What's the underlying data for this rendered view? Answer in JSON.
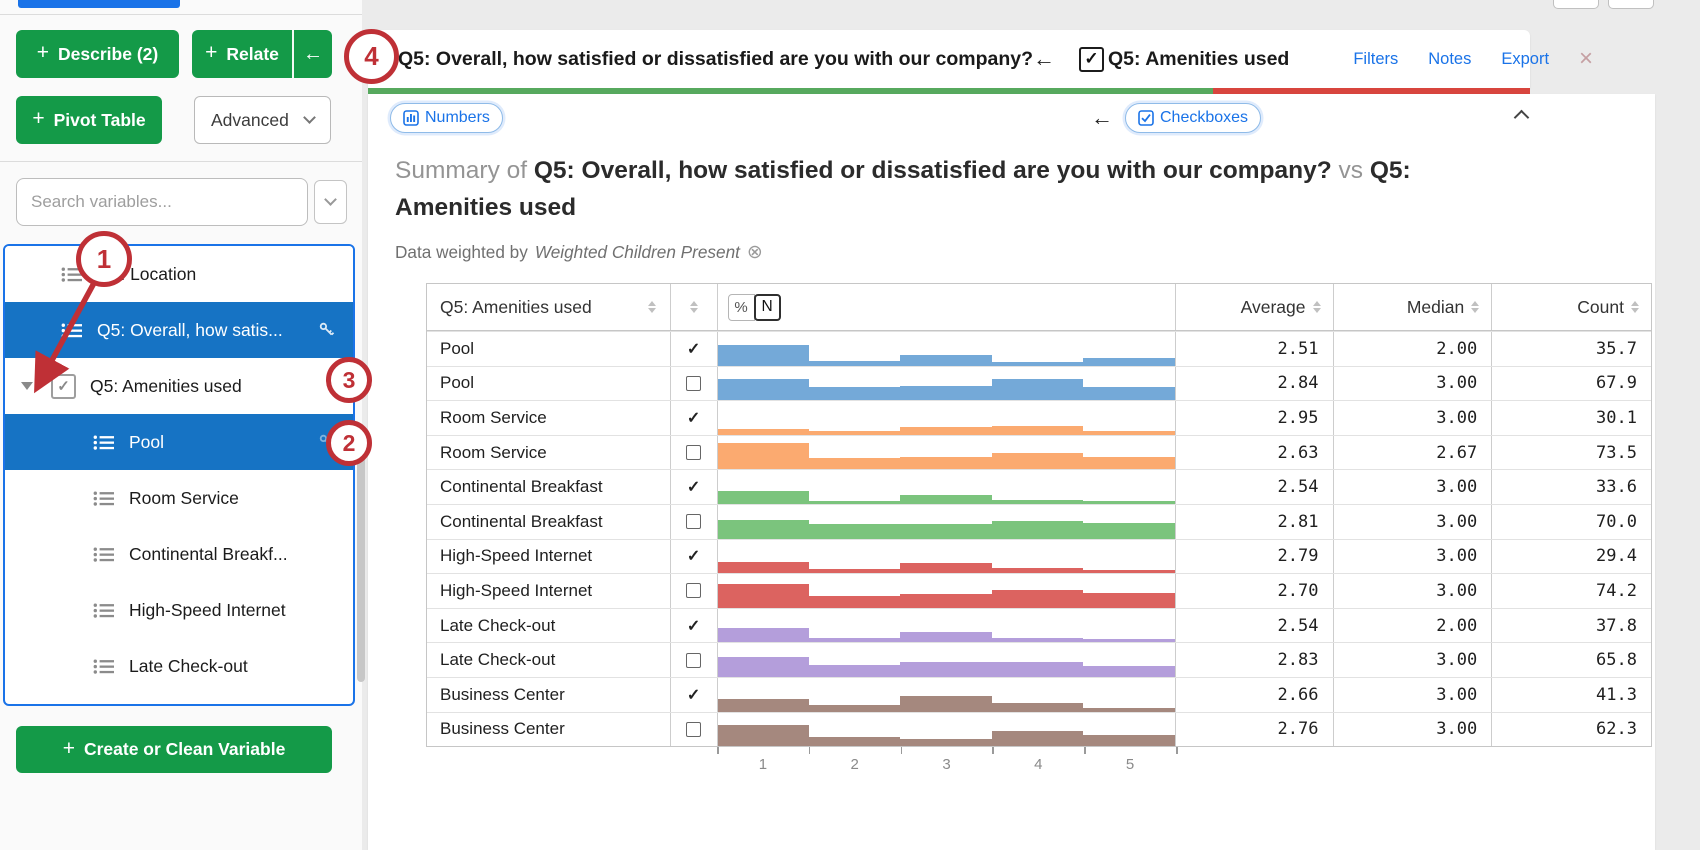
{
  "icons": {
    "plus": "+",
    "back_arrow": "←",
    "close": "×",
    "weight_remove": "⊗",
    "check": "✓",
    "percent": "%",
    "n": "N"
  },
  "sidebar": {
    "buttons": {
      "describe": "Describe (2)",
      "relate": "Relate",
      "pivot": "Pivot Table",
      "advanced": "Advanced",
      "create": "Create or Clean Variable"
    },
    "search_placeholder": "Search variables...",
    "items": [
      {
        "label": "Q3: Location",
        "type": "categorical",
        "level": 0,
        "selected": false,
        "key": false,
        "checkbox": false,
        "expander": false
      },
      {
        "label": "Q5: Overall, how satis...",
        "type": "categorical",
        "level": 0,
        "selected": true,
        "key": true,
        "checkbox": false,
        "expander": false
      },
      {
        "label": "Q5: Amenities used",
        "type": "multi",
        "level": 0,
        "selected": false,
        "key": false,
        "checkbox": true,
        "expander": true
      },
      {
        "label": "Pool",
        "type": "categorical",
        "level": 1,
        "selected": true,
        "key": true,
        "checkbox": false,
        "expander": false
      },
      {
        "label": "Room Service",
        "type": "categorical",
        "level": 1,
        "selected": false,
        "key": false,
        "checkbox": false,
        "expander": false
      },
      {
        "label": "Continental Breakf...",
        "type": "categorical",
        "level": 1,
        "selected": false,
        "key": false,
        "checkbox": false,
        "expander": false
      },
      {
        "label": "High-Speed Internet",
        "type": "categorical",
        "level": 1,
        "selected": false,
        "key": false,
        "checkbox": false,
        "expander": false
      },
      {
        "label": "Late Check-out",
        "type": "categorical",
        "level": 1,
        "selected": false,
        "key": false,
        "checkbox": false,
        "expander": false
      }
    ]
  },
  "header": {
    "primary_title": "Q5: Overall, how satisfied or dissatisfied are you with our company?",
    "secondary_title": "Q5: Amenities used",
    "links": {
      "filters": "Filters",
      "notes": "Notes",
      "export": "Export"
    }
  },
  "tabs": {
    "numbers": "Numbers",
    "checkboxes": "Checkboxes"
  },
  "summary": {
    "prefix": "Summary of",
    "var1": "Q5: Overall, how satisfied or dissatisfied are you with our company?",
    "connector": "vs",
    "var2": "Q5: Amenities used",
    "weight_prefix": "Data weighted by",
    "weight_name": "Weighted Children Present"
  },
  "annotations": {
    "labels": [
      "1",
      "2",
      "3",
      "4"
    ]
  },
  "table": {
    "col1_header": "Q5: Amenities used",
    "toggle": {
      "percent": "%",
      "n": "N",
      "selected": "N"
    },
    "columns": {
      "average": "Average",
      "median": "Median",
      "count": "Count"
    },
    "axis_ticks": [
      "1",
      "2",
      "3",
      "4",
      "5"
    ],
    "rows": [
      {
        "label": "Pool",
        "checked": true,
        "color": "#74a9d8",
        "bins": [
          0.6,
          0.14,
          0.33,
          0.12,
          0.22
        ],
        "average": "2.51",
        "median": "2.00",
        "count": "35.7"
      },
      {
        "label": "Pool",
        "checked": false,
        "color": "#74a9d8",
        "bins": [
          0.62,
          0.4,
          0.42,
          0.64,
          0.38
        ],
        "average": "2.84",
        "median": "3.00",
        "count": "67.9"
      },
      {
        "label": "Room Service",
        "checked": true,
        "color": "#fbaa70",
        "bins": [
          0.18,
          0.1,
          0.22,
          0.25,
          0.1
        ],
        "average": "2.95",
        "median": "3.00",
        "count": "30.1"
      },
      {
        "label": "Room Service",
        "checked": false,
        "color": "#fbaa70",
        "bins": [
          0.8,
          0.35,
          0.38,
          0.48,
          0.36
        ],
        "average": "2.63",
        "median": "2.67",
        "count": "73.5"
      },
      {
        "label": "Continental Breakfast",
        "checked": true,
        "color": "#7bc47d",
        "bins": [
          0.38,
          0.1,
          0.27,
          0.13,
          0.08
        ],
        "average": "2.54",
        "median": "3.00",
        "count": "33.6"
      },
      {
        "label": "Continental Breakfast",
        "checked": false,
        "color": "#7bc47d",
        "bins": [
          0.55,
          0.42,
          0.43,
          0.52,
          0.45
        ],
        "average": "2.81",
        "median": "3.00",
        "count": "70.0"
      },
      {
        "label": "High-Speed Internet",
        "checked": true,
        "color": "#dc6360",
        "bins": [
          0.32,
          0.12,
          0.3,
          0.16,
          0.1
        ],
        "average": "2.79",
        "median": "3.00",
        "count": "29.4"
      },
      {
        "label": "High-Speed Internet",
        "checked": false,
        "color": "#dc6360",
        "bins": [
          0.72,
          0.36,
          0.42,
          0.52,
          0.45
        ],
        "average": "2.70",
        "median": "3.00",
        "count": "74.2"
      },
      {
        "label": "Late Check-out",
        "checked": true,
        "color": "#b49edb",
        "bins": [
          0.42,
          0.12,
          0.3,
          0.14,
          0.1
        ],
        "average": "2.54",
        "median": "2.00",
        "count": "37.8"
      },
      {
        "label": "Late Check-out",
        "checked": false,
        "color": "#b49edb",
        "bins": [
          0.6,
          0.35,
          0.45,
          0.45,
          0.33
        ],
        "average": "2.83",
        "median": "3.00",
        "count": "65.8"
      },
      {
        "label": "Business Center",
        "checked": true,
        "color": "#a5887e",
        "bins": [
          0.36,
          0.18,
          0.46,
          0.25,
          0.12
        ],
        "average": "2.66",
        "median": "3.00",
        "count": "41.3"
      },
      {
        "label": "Business Center",
        "checked": false,
        "color": "#a5887e",
        "bins": [
          0.62,
          0.28,
          0.22,
          0.45,
          0.33
        ],
        "average": "2.76",
        "median": "3.00",
        "count": "62.3"
      }
    ]
  }
}
